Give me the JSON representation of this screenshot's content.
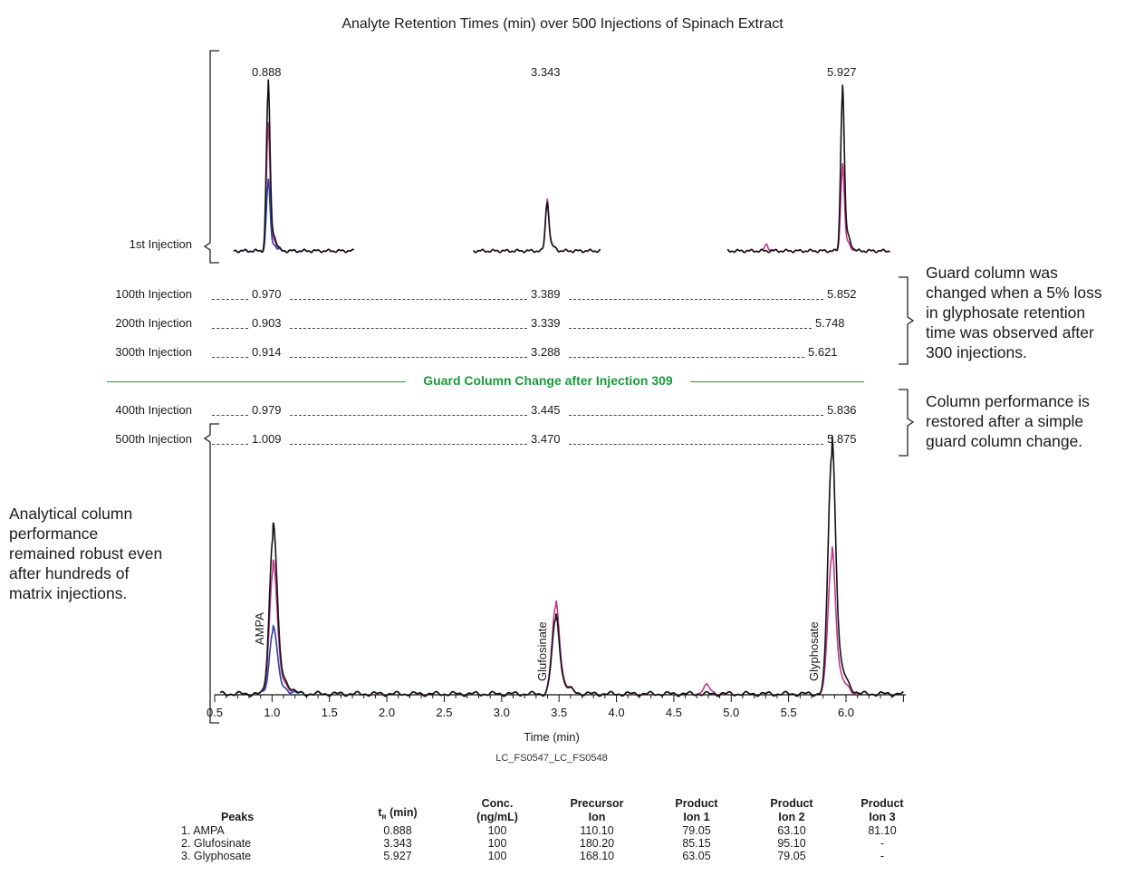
{
  "title": "Analyte Retention Times (min) over 500 Injections of Spinach Extract",
  "top_peak_labels": [
    "0.888",
    "3.343",
    "5.927"
  ],
  "first_injection_label": "1st Injection",
  "rows_before": [
    {
      "label": "100th Injection",
      "values": [
        "0.970",
        "3.389",
        "5.852"
      ]
    },
    {
      "label": "200th Injection",
      "values": [
        "0.903",
        "3.339",
        "5.748"
      ]
    },
    {
      "label": "300th Injection",
      "values": [
        "0.914",
        "3.288",
        "5.621"
      ]
    }
  ],
  "guard_change": "Guard Column Change after Injection 309",
  "rows_after": [
    {
      "label": "400th Injection",
      "values": [
        "0.979",
        "3.445",
        "5.836"
      ]
    },
    {
      "label": "500th Injection",
      "values": [
        "1.009",
        "3.470",
        "5.875"
      ]
    }
  ],
  "note_guard": [
    "Guard column was",
    "changed when a 5% loss",
    "in glyphosate retention",
    "time was observed after",
    "300 injections."
  ],
  "note_restored": [
    "Column performance is",
    "restored after a simple",
    "guard column change."
  ],
  "note_analytical": [
    "Analytical column",
    "performance",
    "remained robust even",
    "after hundreds of",
    "matrix injections."
  ],
  "peak_names": [
    "AMPA",
    "Glufosinate",
    "Glyphosate"
  ],
  "xlabel": "Time (min)",
  "file_code": "LC_FS0547_LC_FS0548",
  "colors": {
    "black": "#111111",
    "magenta": "#c2368f",
    "blue": "#2c3f9e",
    "green": "#1a9a3a"
  },
  "chart_data": {
    "type": "line",
    "title": "Analyte Retention Times (min) over 500 Injections of Spinach Extract",
    "xlabel": "Time (min)",
    "ylabel": "",
    "xlim": [
      0.5,
      6.5
    ],
    "xticks": [
      0.5,
      1.0,
      1.5,
      2.0,
      2.5,
      3.0,
      3.5,
      4.0,
      4.5,
      5.0,
      5.5,
      6.0
    ],
    "xtick_labels": [
      "0.5",
      "1.0",
      "1.5",
      "2.0",
      "2.5",
      "3.0",
      "3.5",
      "4.0",
      "4.5",
      "5.0",
      "5.5",
      "6.0"
    ],
    "retention_times": {
      "1st": [
        0.888,
        3.343,
        5.927
      ],
      "100th": [
        0.97,
        3.389,
        5.852
      ],
      "200th": [
        0.903,
        3.339,
        5.748
      ],
      "300th": [
        0.914,
        3.288,
        5.621
      ],
      "400th": [
        0.979,
        3.445,
        5.836
      ],
      "500th": [
        1.009,
        3.47,
        5.875
      ]
    },
    "chromatograms": [
      {
        "panel": "1st Injection",
        "peaks_black": [
          [
            0.888,
            1.0
          ],
          [
            3.343,
            0.29
          ],
          [
            5.927,
            0.98
          ]
        ],
        "peaks_magenta": [
          [
            0.888,
            0.75
          ],
          [
            3.343,
            0.31
          ],
          [
            4.85,
            0.04
          ],
          [
            5.927,
            0.52
          ]
        ],
        "peaks_blue": [
          [
            0.888,
            0.42
          ]
        ]
      },
      {
        "panel": "500th Injection",
        "peaks_black": [
          [
            1.009,
            0.65
          ],
          [
            3.47,
            0.3
          ],
          [
            5.875,
            0.98
          ]
        ],
        "peaks_magenta": [
          [
            1.009,
            0.51
          ],
          [
            3.47,
            0.35
          ],
          [
            4.78,
            0.03
          ],
          [
            5.875,
            0.56
          ]
        ],
        "peaks_blue": [
          [
            1.009,
            0.26
          ]
        ]
      }
    ]
  },
  "table": {
    "headers": [
      "Peaks",
      "t_R (min)",
      "Conc. (ng/mL)",
      "Precursor Ion",
      "Product Ion 1",
      "Product Ion 2",
      "Product Ion 3"
    ],
    "header_lines": [
      [
        "Peaks"
      ],
      [
        "t",
        "R",
        " (min)"
      ],
      [
        "Conc.",
        "(ng/mL)"
      ],
      [
        "Precursor",
        "Ion"
      ],
      [
        "Product",
        "Ion 1"
      ],
      [
        "Product",
        "Ion 2"
      ],
      [
        "Product",
        "Ion 3"
      ]
    ],
    "rows": [
      [
        "1.  AMPA",
        "0.888",
        "100",
        "110.10",
        "79.05",
        "63.10",
        "81.10"
      ],
      [
        "2.  Glufosinate",
        "3.343",
        "100",
        "180.20",
        "85.15",
        "95.10",
        "-"
      ],
      [
        "3.  Glyphosate",
        "5.927",
        "100",
        "168.10",
        "63.05",
        "79.05",
        "-"
      ]
    ]
  }
}
